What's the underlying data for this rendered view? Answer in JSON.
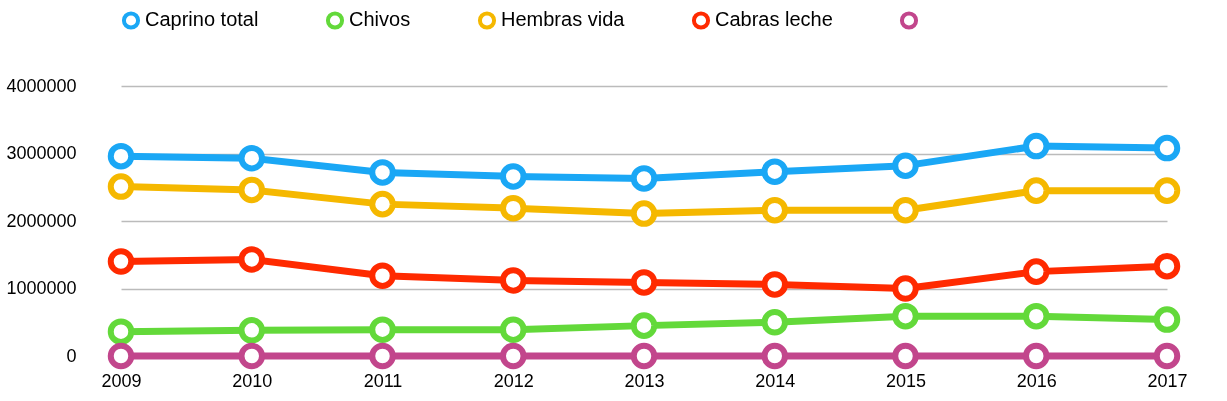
{
  "chart_data": {
    "type": "line",
    "categories": [
      "2009",
      "2010",
      "2011",
      "2012",
      "2013",
      "2014",
      "2015",
      "2016",
      "2017"
    ],
    "series": [
      {
        "name": "Caprino total",
        "color": "#1aa7f5",
        "values": [
          2960000,
          2930000,
          2720000,
          2660000,
          2630000,
          2730000,
          2820000,
          3110000,
          3080000
        ]
      },
      {
        "name": "Chivos",
        "color": "#63d93a",
        "values": [
          360000,
          380000,
          390000,
          390000,
          450000,
          500000,
          590000,
          590000,
          540000
        ]
      },
      {
        "name": "Hembras vida",
        "color": "#f5b800",
        "values": [
          2510000,
          2460000,
          2250000,
          2190000,
          2110000,
          2160000,
          2160000,
          2450000,
          2450000
        ]
      },
      {
        "name": "Cabras leche",
        "color": "#ff2a00",
        "values": [
          1400000,
          1430000,
          1190000,
          1120000,
          1090000,
          1060000,
          1000000,
          1250000,
          1330000
        ]
      },
      {
        "color": "#c2468c",
        "values": [
          0,
          0,
          0,
          0,
          0,
          0,
          0,
          0,
          0
        ]
      }
    ],
    "ylim": [
      0,
      4000000
    ],
    "yticks": [
      0,
      1000000,
      2000000,
      3000000,
      4000000
    ],
    "grid": "y",
    "legend": "top",
    "marker": "circle",
    "line_style": "solid"
  }
}
